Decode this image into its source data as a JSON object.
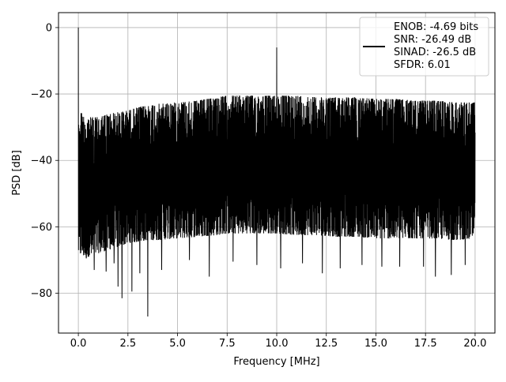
{
  "chart_data": {
    "type": "line",
    "title": "",
    "xlabel": "Frequency [MHz]",
    "ylabel": "PSD [dB]",
    "xlim": [
      -1.0,
      21.0
    ],
    "ylim": [
      -92.0,
      4.5
    ],
    "xticks": [
      0.0,
      2.5,
      5.0,
      7.5,
      10.0,
      12.5,
      15.0,
      17.5,
      20.0
    ],
    "xtick_labels": [
      "0.0",
      "2.5",
      "5.0",
      "7.5",
      "10.0",
      "12.5",
      "15.0",
      "17.5",
      "20.0"
    ],
    "yticks": [
      0,
      -20,
      -40,
      -60,
      -80
    ],
    "ytick_labels": [
      "0",
      "−20",
      "−40",
      "−60",
      "−80"
    ],
    "grid": true,
    "legend_position": "top-right",
    "legend_lines": [
      "ENOB: -4.69 bits",
      "SNR: -26.49 dB",
      "SINAD: -26.5 dB",
      "SFDR: 6.01"
    ],
    "line_color": "#000000",
    "series": [
      {
        "name": "",
        "envelope": {
          "x": [
            0.0,
            0.3,
            0.6,
            1.0,
            1.5,
            2.0,
            2.5,
            3.0,
            3.5,
            4.0,
            5.0,
            6.0,
            7.0,
            7.5,
            8.0,
            9.0,
            10.0,
            11.0,
            12.0,
            13.0,
            14.0,
            15.0,
            16.0,
            17.0,
            18.0,
            19.0,
            20.0
          ],
          "upper": [
            -24,
            -27,
            -27,
            -27,
            -26,
            -25.5,
            -25,
            -24,
            -23.5,
            -23,
            -22.5,
            -22,
            -21,
            -20.5,
            -20.5,
            -20.5,
            -20.5,
            -20.5,
            -21,
            -21,
            -21,
            -21.5,
            -21.5,
            -22,
            -22,
            -22.5,
            -22.5
          ],
          "lower": [
            -68,
            -69,
            -69,
            -68,
            -67,
            -66,
            -65,
            -64.5,
            -64,
            -64,
            -63.5,
            -63,
            -62.5,
            -62,
            -62,
            -62,
            -62,
            -62.5,
            -62.5,
            -63,
            -63,
            -63.5,
            -63.5,
            -63.5,
            -63.5,
            -64,
            -63.5
          ]
        },
        "peaks": [
          {
            "x": 0.0,
            "y": 0.0
          },
          {
            "x": 10.0,
            "y": -6.0
          }
        ],
        "dips": [
          {
            "x": 0.05,
            "y": -63.0
          },
          {
            "x": 0.4,
            "y": -69.5
          },
          {
            "x": 0.8,
            "y": -73.0
          },
          {
            "x": 1.4,
            "y": -73.5
          },
          {
            "x": 1.8,
            "y": -71.0
          },
          {
            "x": 2.0,
            "y": -78.0
          },
          {
            "x": 2.2,
            "y": -81.5
          },
          {
            "x": 2.7,
            "y": -79.5
          },
          {
            "x": 3.1,
            "y": -74.0
          },
          {
            "x": 3.5,
            "y": -87.0
          },
          {
            "x": 4.2,
            "y": -73.0
          },
          {
            "x": 5.6,
            "y": -70.0
          },
          {
            "x": 6.6,
            "y": -75.0
          },
          {
            "x": 7.8,
            "y": -70.5
          },
          {
            "x": 9.0,
            "y": -71.5
          },
          {
            "x": 10.2,
            "y": -72.5
          },
          {
            "x": 11.3,
            "y": -71.0
          },
          {
            "x": 12.3,
            "y": -74.0
          },
          {
            "x": 13.2,
            "y": -72.5
          },
          {
            "x": 14.3,
            "y": -71.5
          },
          {
            "x": 15.3,
            "y": -72.0
          },
          {
            "x": 16.2,
            "y": -72.0
          },
          {
            "x": 17.4,
            "y": -72.0
          },
          {
            "x": 18.0,
            "y": -75.0
          },
          {
            "x": 18.8,
            "y": -74.5
          },
          {
            "x": 19.5,
            "y": -71.5
          }
        ]
      }
    ]
  }
}
